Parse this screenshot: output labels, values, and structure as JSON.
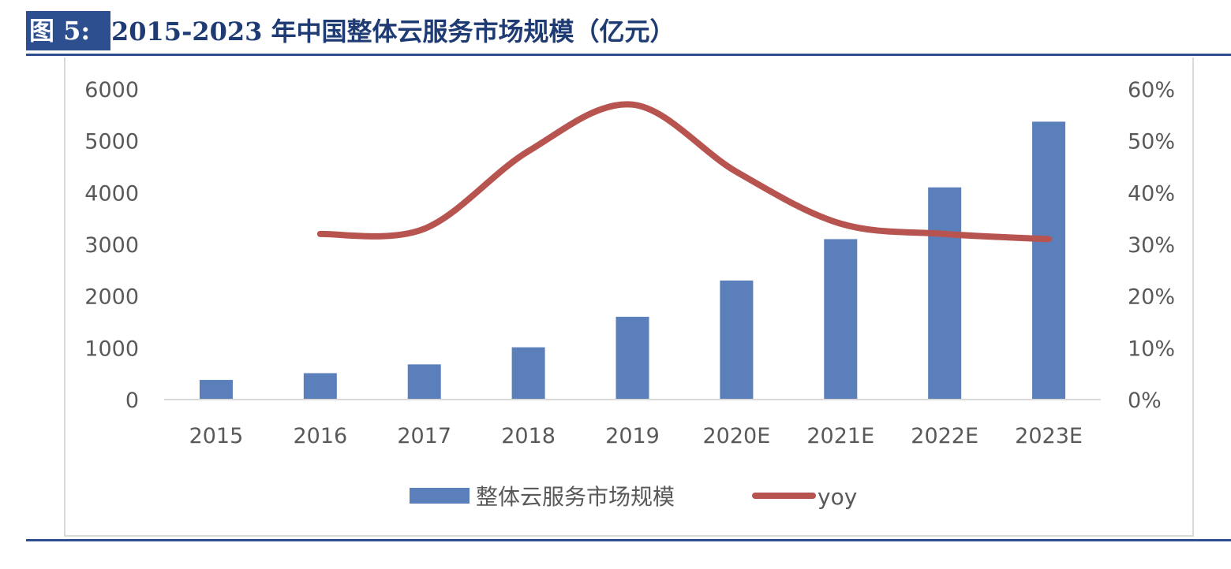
{
  "header": {
    "fig_label": "图 5:",
    "title": "2015-2023 年中国整体云服务市场规模（亿元）"
  },
  "colors": {
    "bar": "#5b7fba",
    "line": "#b85450",
    "rule": "#2e4f8f",
    "text": "#595959"
  },
  "chart_data": {
    "type": "bar",
    "categories": [
      "2015",
      "2016",
      "2017",
      "2018",
      "2019",
      "2020E",
      "2021E",
      "2022E",
      "2023E"
    ],
    "series": [
      {
        "name": "整体云服务市场规模",
        "type": "bar",
        "axis": "left",
        "values": [
          380,
          510,
          680,
          1010,
          1600,
          2300,
          3100,
          4100,
          5370
        ]
      },
      {
        "name": "yoy",
        "type": "line",
        "axis": "right",
        "values": [
          null,
          0.32,
          0.33,
          0.48,
          0.57,
          0.44,
          0.34,
          0.32,
          0.31
        ]
      }
    ],
    "y_left": {
      "min": 0,
      "max": 6000,
      "ticks": [
        "0",
        "1000",
        "2000",
        "3000",
        "4000",
        "5000",
        "6000"
      ]
    },
    "y_right": {
      "min": 0,
      "max": 0.6,
      "ticks": [
        "0%",
        "10%",
        "20%",
        "30%",
        "40%",
        "50%",
        "60%"
      ]
    },
    "legend": {
      "position": "bottom"
    },
    "grid": false
  }
}
